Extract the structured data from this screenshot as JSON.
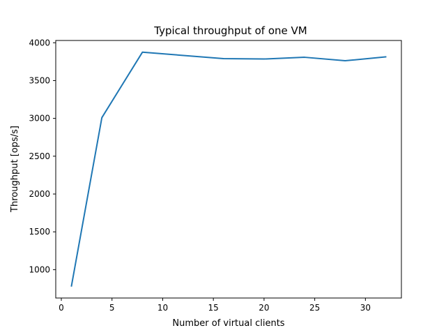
{
  "chart_data": {
    "type": "line",
    "title": "Typical throughput of one VM",
    "xlabel": "Number of virtual clients",
    "ylabel": "Throughput [ops/s]",
    "xlim": [
      -0.55,
      33.55
    ],
    "ylim": [
      625,
      4030
    ],
    "xticks": [
      0,
      5,
      10,
      15,
      20,
      25,
      30
    ],
    "yticks": [
      1000,
      1500,
      2000,
      2500,
      3000,
      3500,
      4000
    ],
    "grid": false,
    "series": [
      {
        "color": "#1f77b4",
        "x": [
          1,
          4,
          8,
          16,
          20,
          24,
          28,
          32
        ],
        "y": [
          785,
          3010,
          3875,
          3790,
          3785,
          3808,
          3762,
          3813
        ]
      }
    ]
  }
}
